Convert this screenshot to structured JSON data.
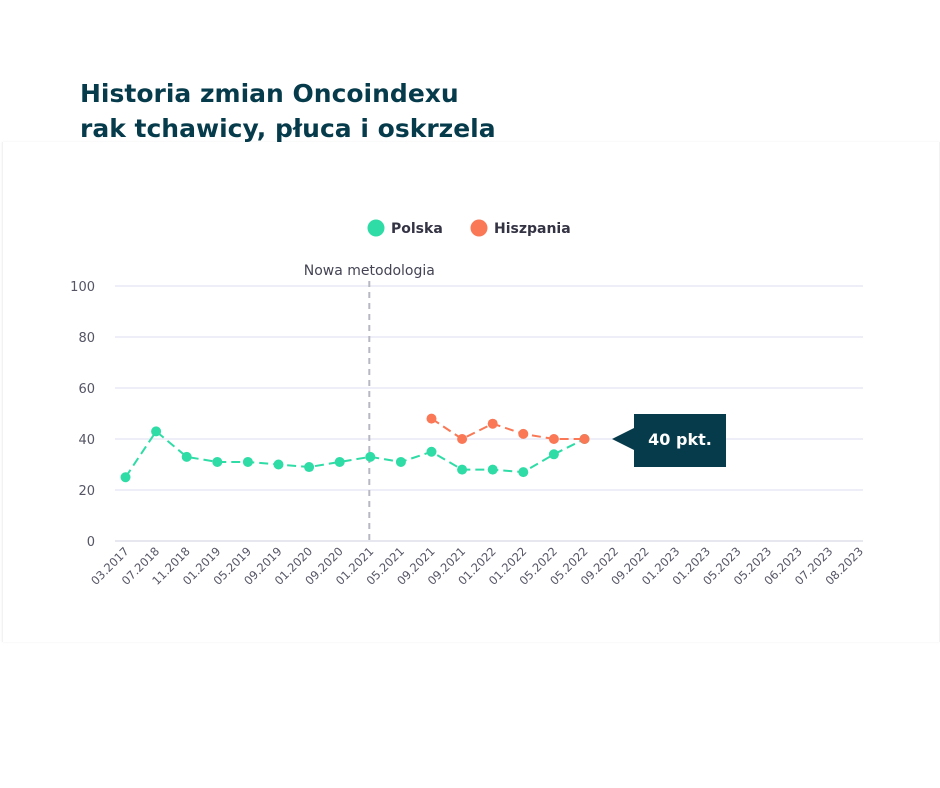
{
  "header": {
    "title_line1": "Historia zmian Oncoindexu",
    "title_line2": "rak tchawicy, płuca i oskrzela"
  },
  "colors": {
    "title": "#063b4b",
    "polska": "#2fdca6",
    "hiszpania": "#fa7856",
    "callout": "#063b4b",
    "grid": "#dcdcf0",
    "axis_text": "#555566"
  },
  "chart_data": {
    "type": "line",
    "title": "Historia zmian Oncoindexu rak tchawicy, płuca i oskrzela",
    "categories": [
      "03.2017",
      "07.2018",
      "11.2018",
      "01.2019",
      "05.2019",
      "09.2019",
      "01.2020",
      "09.2020",
      "01.2021",
      "05.2021",
      "09.2021",
      "09.2021",
      "01.2022",
      "01.2022",
      "05.2022",
      "05.2022",
      "09.2022",
      "09.2022",
      "01.2023",
      "01.2023",
      "05.2023",
      "05.2023",
      "06.2023",
      "07.2023",
      "08.2023"
    ],
    "series": [
      {
        "name": "Polska",
        "color": "#2fdca6",
        "values": [
          25,
          43,
          33,
          31,
          31,
          30,
          29,
          31,
          33,
          31,
          35,
          28,
          28,
          27,
          34,
          40,
          null,
          null,
          null,
          null,
          null,
          null,
          null,
          null,
          null
        ]
      },
      {
        "name": "Hiszpania",
        "color": "#fa7856",
        "values": [
          null,
          null,
          null,
          null,
          null,
          null,
          null,
          null,
          null,
          null,
          48,
          40,
          46,
          42,
          40,
          40,
          null,
          null,
          null,
          null,
          null,
          null,
          null,
          null,
          null
        ]
      }
    ],
    "ylim": [
      0,
      100
    ],
    "yticks": [
      0,
      20,
      40,
      60,
      80,
      100
    ],
    "legend": "top-center",
    "grid": true,
    "annotation": {
      "label": "Nowa metodologia",
      "category_index": 8
    },
    "callout": {
      "label": "40 pkt.",
      "series": "Polska",
      "category_index": 15
    }
  }
}
